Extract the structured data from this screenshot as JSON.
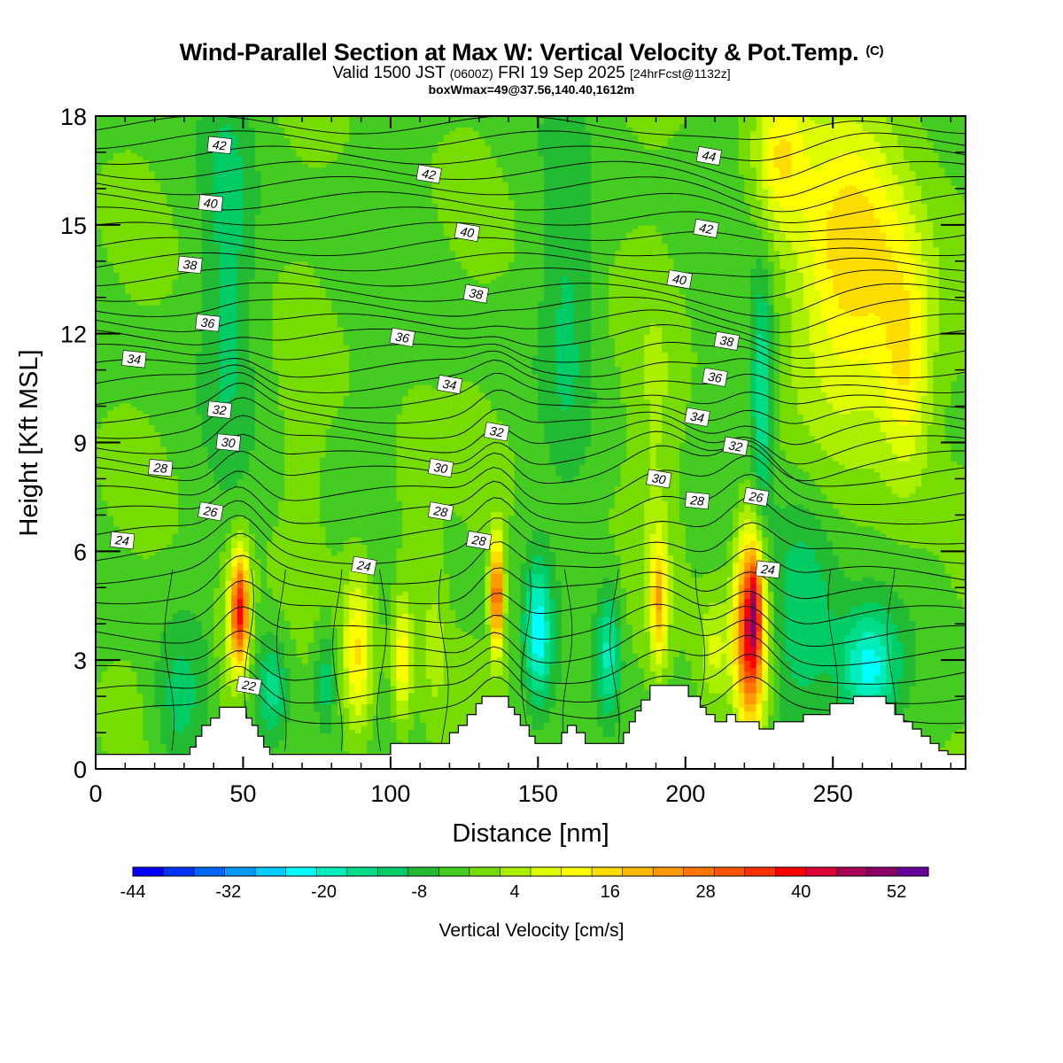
{
  "title": {
    "main": "Wind-Parallel Section at Max W: Vertical Velocity & Pot.Temp.",
    "copyright": "(C)",
    "valid_prefix": "Valid 1500 JST",
    "valid_utc": "(0600Z)",
    "valid_date": "FRI 19 Sep 2025",
    "forecast": "[24hrFcst@1132z]",
    "boxmax": "boxWmax=49@37.56,140.40,1612m"
  },
  "chart_data": {
    "type": "heatmap",
    "title": "Wind-Parallel Section at Max W: Vertical Velocity & Pot.Temp.",
    "xlabel": "Distance [nm]",
    "ylabel": "Height [Kft MSL]",
    "xlim": [
      0,
      295
    ],
    "ylim": [
      0,
      18
    ],
    "xticks": [
      0,
      50,
      100,
      150,
      200,
      250
    ],
    "yticks": [
      0,
      3,
      6,
      9,
      12,
      15,
      18
    ],
    "colorbar": {
      "label": "Vertical Velocity [cm/s]",
      "min": -44,
      "max": 56,
      "step": 4,
      "tick_labels": [
        "-44",
        "-32",
        "-20",
        "-8",
        "4",
        "16",
        "28",
        "40",
        "52"
      ],
      "colors": [
        "#0000ff",
        "#0033ff",
        "#0066ff",
        "#0099ff",
        "#00ccff",
        "#00ffff",
        "#00eebb",
        "#00dd88",
        "#00cc66",
        "#22bb33",
        "#44cc22",
        "#77dd00",
        "#aaee00",
        "#ddff00",
        "#ffff00",
        "#ffdd00",
        "#ffbb00",
        "#ff9900",
        "#ff7700",
        "#ff5500",
        "#ff3300",
        "#ff0000",
        "#dd0033",
        "#aa0055",
        "#880066",
        "#660099"
      ]
    },
    "terrain": [
      [
        0,
        0.4
      ],
      [
        32,
        0.4
      ],
      [
        32,
        0.6
      ],
      [
        34,
        0.6
      ],
      [
        34,
        0.9
      ],
      [
        36,
        0.9
      ],
      [
        36,
        1.2
      ],
      [
        39,
        1.2
      ],
      [
        39,
        1.4
      ],
      [
        42,
        1.4
      ],
      [
        42,
        1.7
      ],
      [
        51,
        1.7
      ],
      [
        51,
        1.4
      ],
      [
        53,
        1.4
      ],
      [
        53,
        1.2
      ],
      [
        55,
        1.2
      ],
      [
        55,
        0.9
      ],
      [
        57,
        0.9
      ],
      [
        57,
        0.6
      ],
      [
        59,
        0.6
      ],
      [
        59,
        0.4
      ],
      [
        100,
        0.4
      ],
      [
        100,
        0.7
      ],
      [
        120,
        0.7
      ],
      [
        120,
        1.0
      ],
      [
        123,
        1.0
      ],
      [
        123,
        1.2
      ],
      [
        126,
        1.2
      ],
      [
        126,
        1.5
      ],
      [
        129,
        1.5
      ],
      [
        129,
        1.8
      ],
      [
        131,
        1.8
      ],
      [
        131,
        2.0
      ],
      [
        140,
        2.0
      ],
      [
        140,
        1.7
      ],
      [
        142,
        1.7
      ],
      [
        142,
        1.5
      ],
      [
        144,
        1.5
      ],
      [
        144,
        1.2
      ],
      [
        147,
        1.2
      ],
      [
        147,
        0.9
      ],
      [
        149,
        0.9
      ],
      [
        149,
        0.7
      ],
      [
        158,
        0.7
      ],
      [
        158,
        1.0
      ],
      [
        160,
        1.0
      ],
      [
        160,
        1.2
      ],
      [
        163,
        1.2
      ],
      [
        163,
        1.0
      ],
      [
        166,
        1.0
      ],
      [
        166,
        0.7
      ],
      [
        179,
        0.7
      ],
      [
        179,
        1.0
      ],
      [
        181,
        1.0
      ],
      [
        181,
        1.3
      ],
      [
        183,
        1.3
      ],
      [
        183,
        1.6
      ],
      [
        185,
        1.6
      ],
      [
        185,
        1.9
      ],
      [
        188,
        1.9
      ],
      [
        188,
        2.3
      ],
      [
        201,
        2.3
      ],
      [
        201,
        2.0
      ],
      [
        205,
        2.0
      ],
      [
        205,
        1.7
      ],
      [
        207,
        1.7
      ],
      [
        207,
        1.5
      ],
      [
        210,
        1.5
      ],
      [
        210,
        1.3
      ],
      [
        214,
        1.3
      ],
      [
        214,
        1.5
      ],
      [
        217,
        1.5
      ],
      [
        217,
        1.3
      ],
      [
        225,
        1.3
      ],
      [
        225,
        1.1
      ],
      [
        230,
        1.1
      ],
      [
        230,
        1.3
      ],
      [
        240,
        1.3
      ],
      [
        240,
        1.5
      ],
      [
        249,
        1.5
      ],
      [
        249,
        1.8
      ],
      [
        257,
        1.8
      ],
      [
        257,
        2.0
      ],
      [
        268,
        2.0
      ],
      [
        268,
        1.8
      ],
      [
        271,
        1.8
      ],
      [
        271,
        1.5
      ],
      [
        274,
        1.5
      ],
      [
        274,
        1.3
      ],
      [
        277,
        1.3
      ],
      [
        277,
        1.1
      ],
      [
        280,
        1.1
      ],
      [
        280,
        0.9
      ],
      [
        283,
        0.9
      ],
      [
        283,
        0.7
      ],
      [
        286,
        0.7
      ],
      [
        286,
        0.5
      ],
      [
        289,
        0.5
      ],
      [
        289,
        0.4
      ],
      [
        295,
        0.4
      ]
    ],
    "theta_labels": [
      {
        "v": "42",
        "x": 42,
        "y": 17.2
      },
      {
        "v": "42",
        "x": 113,
        "y": 16.4
      },
      {
        "v": "44",
        "x": 208,
        "y": 16.9
      },
      {
        "v": "40",
        "x": 39,
        "y": 15.6
      },
      {
        "v": "40",
        "x": 126,
        "y": 14.8
      },
      {
        "v": "42",
        "x": 207,
        "y": 14.9
      },
      {
        "v": "38",
        "x": 32,
        "y": 13.9
      },
      {
        "v": "38",
        "x": 129,
        "y": 13.1
      },
      {
        "v": "40",
        "x": 198,
        "y": 13.5
      },
      {
        "v": "36",
        "x": 38,
        "y": 12.3
      },
      {
        "v": "36",
        "x": 104,
        "y": 11.9
      },
      {
        "v": "38",
        "x": 214,
        "y": 11.8
      },
      {
        "v": "34",
        "x": 13,
        "y": 11.3
      },
      {
        "v": "34",
        "x": 120,
        "y": 10.6
      },
      {
        "v": "36",
        "x": 210,
        "y": 10.8
      },
      {
        "v": "32",
        "x": 42,
        "y": 9.9
      },
      {
        "v": "32",
        "x": 136,
        "y": 9.3
      },
      {
        "v": "34",
        "x": 204,
        "y": 9.7
      },
      {
        "v": "30",
        "x": 45,
        "y": 9.0
      },
      {
        "v": "30",
        "x": 117,
        "y": 8.3
      },
      {
        "v": "32",
        "x": 217,
        "y": 8.9
      },
      {
        "v": "28",
        "x": 22,
        "y": 8.3
      },
      {
        "v": "30",
        "x": 191,
        "y": 8.0
      },
      {
        "v": "28",
        "x": 117,
        "y": 7.1
      },
      {
        "v": "28",
        "x": 204,
        "y": 7.4
      },
      {
        "v": "26",
        "x": 39,
        "y": 7.1
      },
      {
        "v": "26",
        "x": 224,
        "y": 7.5
      },
      {
        "v": "24",
        "x": 9,
        "y": 6.3
      },
      {
        "v": "28",
        "x": 130,
        "y": 6.3
      },
      {
        "v": "24",
        "x": 91,
        "y": 5.6
      },
      {
        "v": "24",
        "x": 228,
        "y": 5.5
      },
      {
        "v": "22",
        "x": 52,
        "y": 2.3
      }
    ]
  }
}
